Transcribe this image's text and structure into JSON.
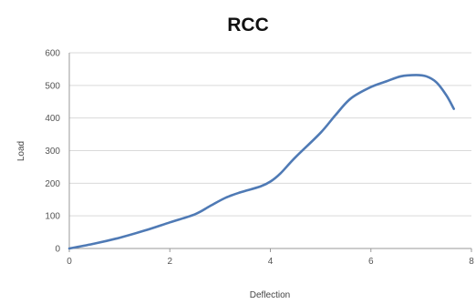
{
  "chart_data": {
    "type": "line",
    "title": "RCC",
    "xlabel": "Deflection",
    "ylabel": "Load",
    "xlim": [
      0,
      8
    ],
    "ylim": [
      0,
      600
    ],
    "xticks": [
      "0",
      "2",
      "4",
      "6",
      "8"
    ],
    "yticks": [
      "0",
      "100",
      "200",
      "300",
      "400",
      "500",
      "600"
    ],
    "grid": "horizontal",
    "legend": "none",
    "series": [
      {
        "color": "#4f7ab5",
        "x": [
          0,
          0.5,
          1,
          1.5,
          2,
          2.5,
          2.8,
          3.1,
          3.4,
          3.8,
          4.0,
          4.2,
          4.5,
          5.0,
          5.3,
          5.6,
          6.0,
          6.3,
          6.6,
          6.9,
          7.1,
          7.3,
          7.5,
          7.65
        ],
        "y": [
          0,
          15,
          33,
          55,
          80,
          105,
          130,
          155,
          172,
          190,
          205,
          230,
          280,
          355,
          410,
          460,
          495,
          512,
          528,
          532,
          528,
          510,
          470,
          428
        ]
      }
    ]
  }
}
